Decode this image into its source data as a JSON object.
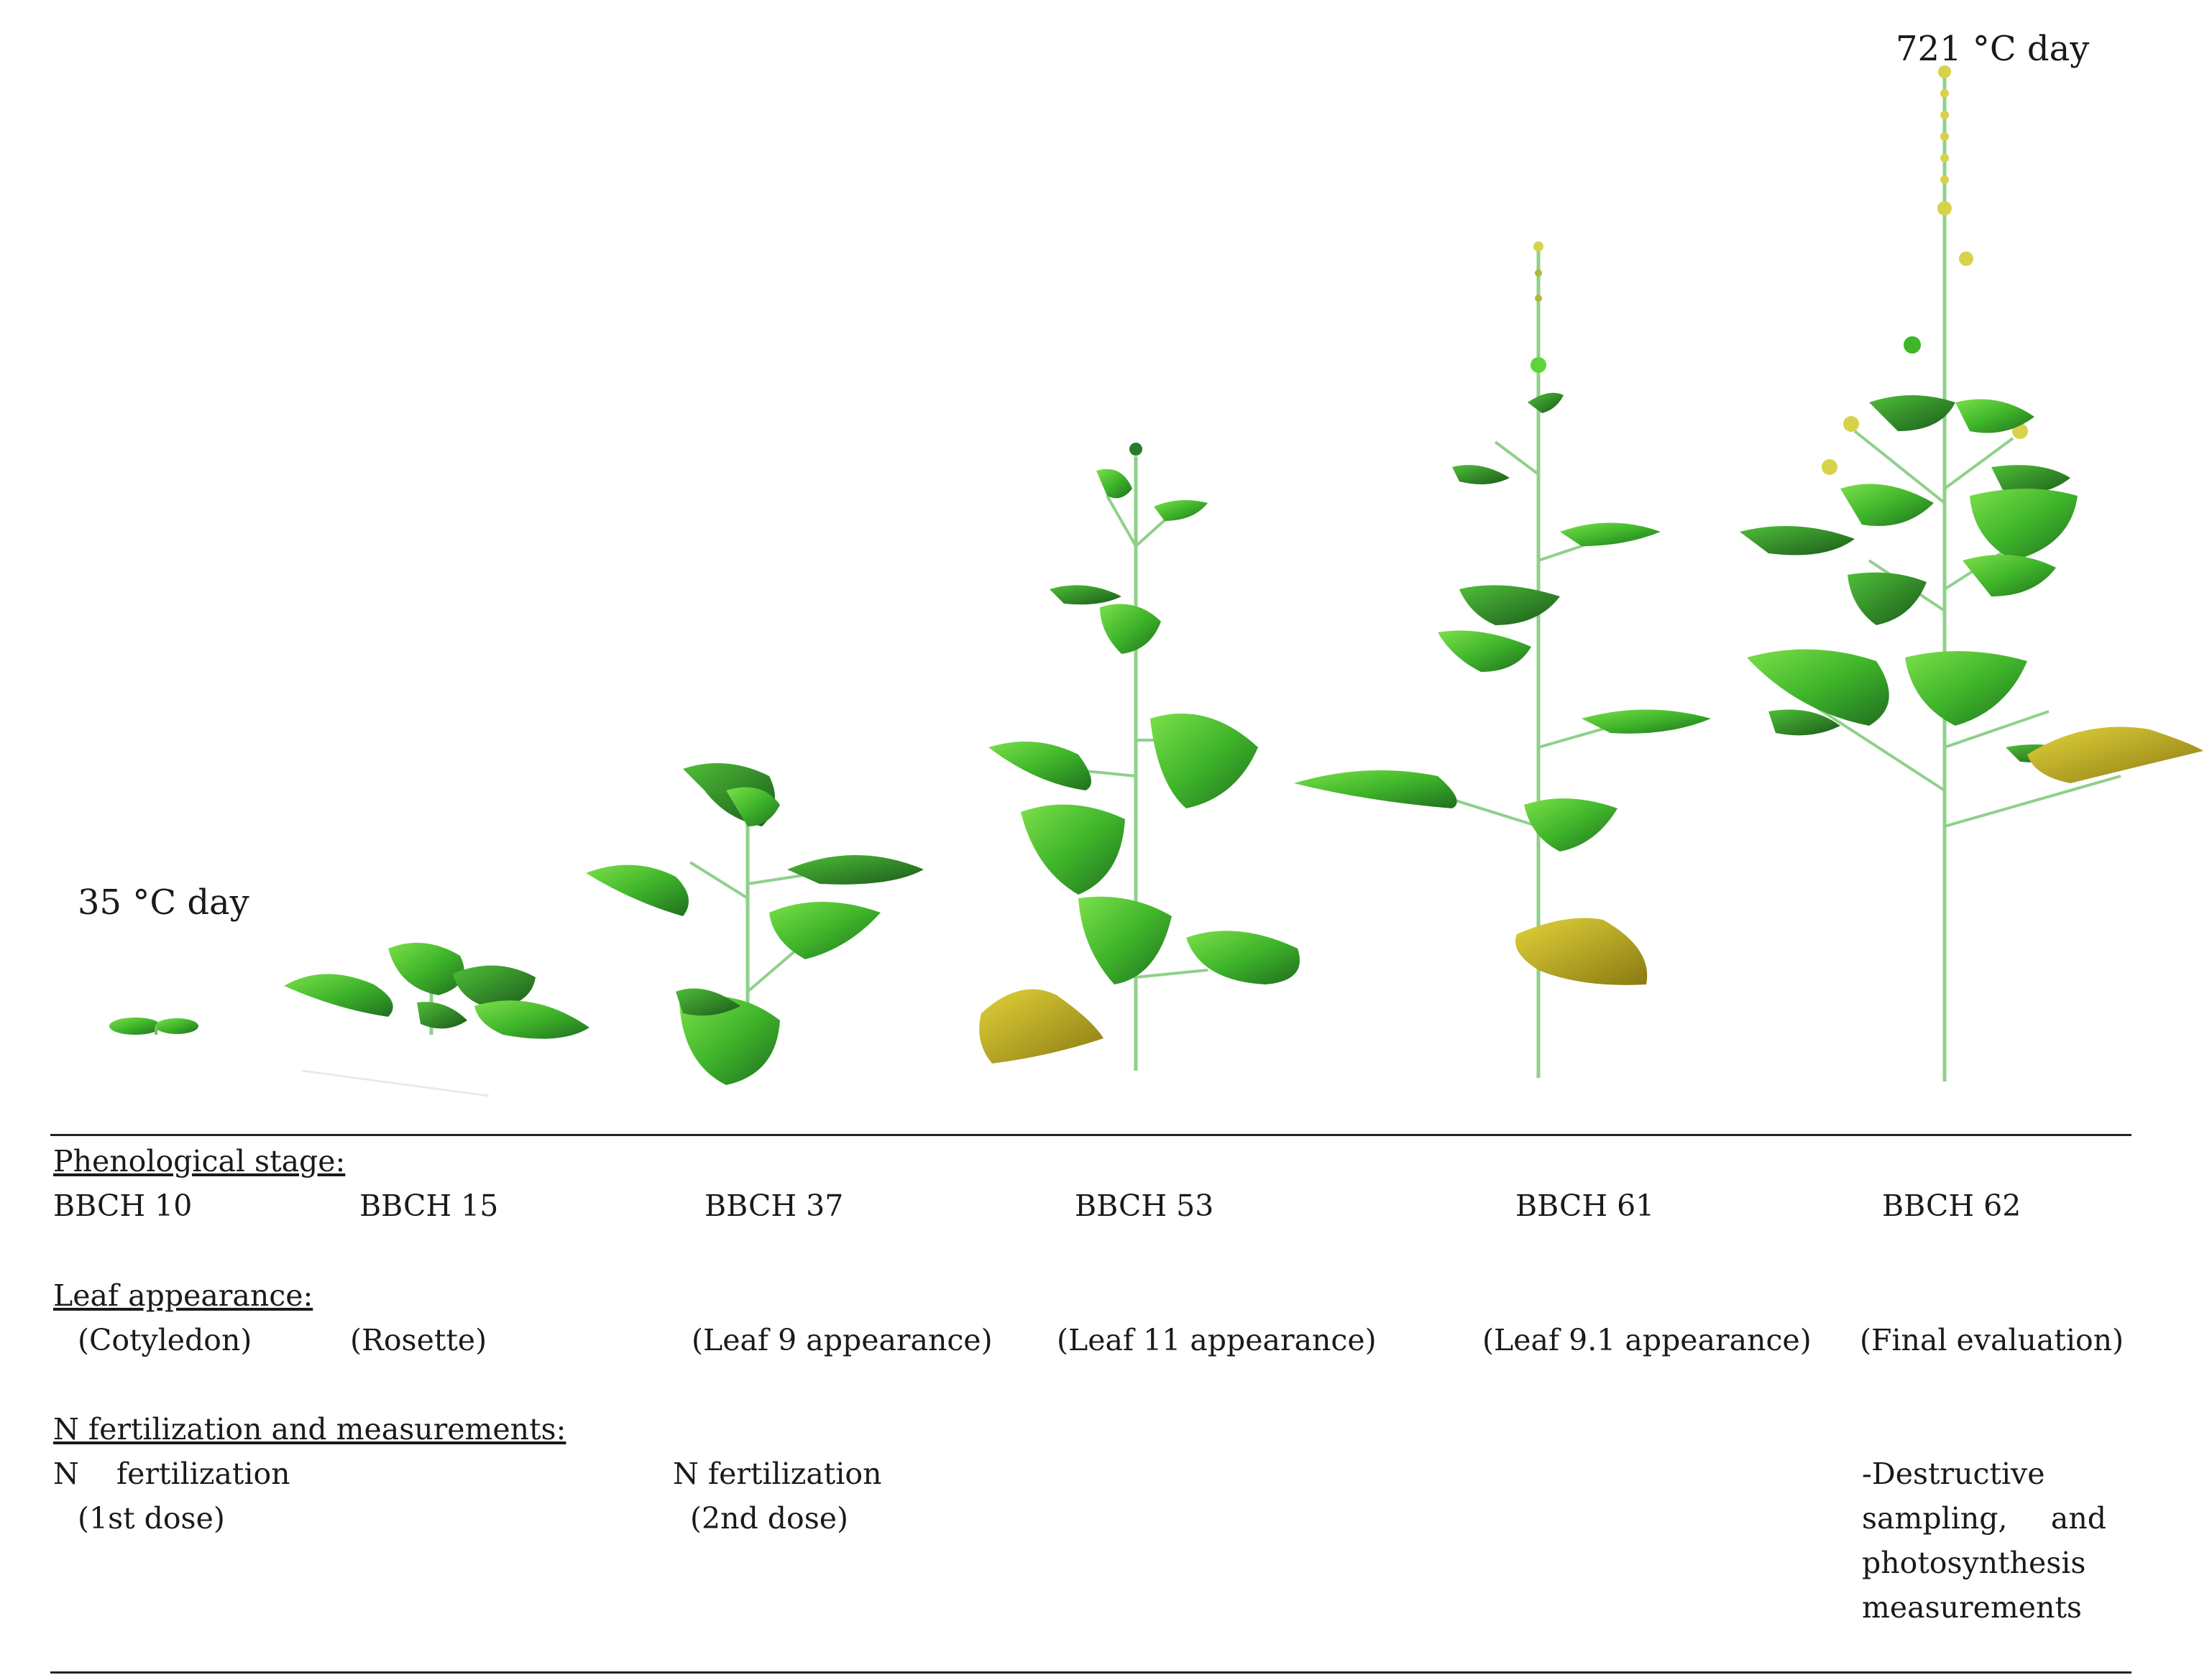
{
  "thermal_time": {
    "start_label": "35 °C day",
    "end_label": "721 °C day"
  },
  "table": {
    "phenological_header": "Phenological stage:",
    "stages": [
      "BBCH 10",
      "BBCH 15",
      "BBCH 37",
      "BBCH 53",
      "BBCH 61",
      "BBCH 62"
    ],
    "leaf_header": "Leaf appearance:",
    "leaf_states": [
      "(Cotyledon)",
      "(Rosette)",
      "(Leaf 9 appearance)",
      "(Leaf 11 appearance)",
      "(Leaf 9.1 appearance)",
      "(Final evaluation)"
    ],
    "n_header": "N fertilization and measurements:",
    "n_first": {
      "line1": "N    fertilization",
      "line2": "(1st dose)"
    },
    "n_second": {
      "line1": "N fertilization",
      "line2": "(2nd dose)"
    },
    "final_measure": "-Destructive sampling, and photosynthesis measurements"
  },
  "colors": {
    "leaf_light": "#5fd33a",
    "leaf_mid": "#3fb52a",
    "leaf_dark": "#1f6e1f",
    "leaf_senescent": "#c8b828",
    "stem": "#8fd08a",
    "flower": "#d8d24a"
  }
}
